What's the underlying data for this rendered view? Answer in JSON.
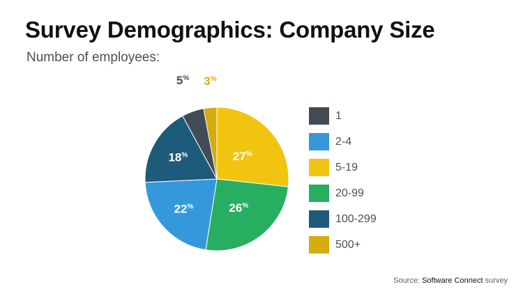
{
  "title": "Survey Demographics: Company Size",
  "subtitle": "Number of employees:",
  "chart_data": {
    "type": "pie",
    "title": "Survey Demographics: Company Size",
    "subtitle": "Number of employees:",
    "legend_position": "right",
    "slices": [
      {
        "label": "1",
        "value": 5,
        "color": "#424c55"
      },
      {
        "label": "2-4",
        "value": 22,
        "color": "#3498db"
      },
      {
        "label": "5-19",
        "value": 27,
        "color": "#f1c40f"
      },
      {
        "label": "20-99",
        "value": 26,
        "color": "#27ae60"
      },
      {
        "label": "100-299",
        "value": 18,
        "color": "#1e5a7a"
      },
      {
        "label": "500+",
        "value": 3,
        "color": "#d4ac0d"
      }
    ],
    "unit": "%"
  },
  "source": {
    "prefix": "Source:",
    "brand": "Software Connect",
    "suffix": "survey"
  }
}
